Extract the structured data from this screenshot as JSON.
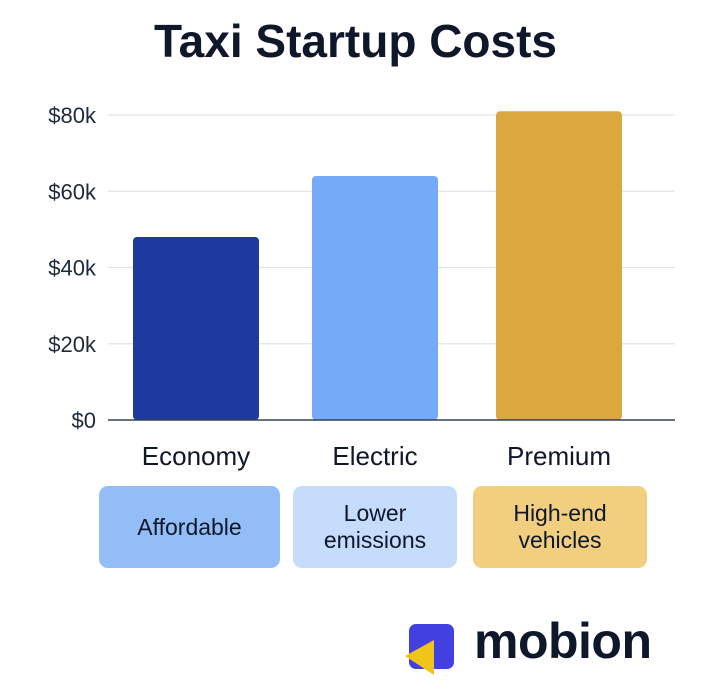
{
  "chart_data": {
    "type": "bar",
    "title": "Taxi Startup Costs",
    "categories": [
      "Economy",
      "Electric",
      "Premium"
    ],
    "values": [
      48000,
      64000,
      81000
    ],
    "ylim": [
      0,
      80000
    ],
    "yticks": [
      0,
      20000,
      40000,
      60000,
      80000
    ],
    "ytick_labels": [
      "$0",
      "$20k",
      "$40k",
      "$60k",
      "$80k"
    ],
    "xlabel": "",
    "ylabel": "",
    "grid": true,
    "colors": [
      "#1e3a9f",
      "#74aaf8",
      "#dba83f"
    ]
  },
  "tags": [
    {
      "text": "Affordable",
      "color": "#93bdf7"
    },
    {
      "text": "Lower\nemissions",
      "color": "#c5dcfb"
    },
    {
      "text": "High-end\nvehicles",
      "color": "#f1cf7f"
    }
  ],
  "brand": {
    "name": "mobion",
    "icon": "mobion-logo-icon",
    "colors": {
      "square": "#4240e0",
      "triangle": "#f0c419"
    }
  }
}
